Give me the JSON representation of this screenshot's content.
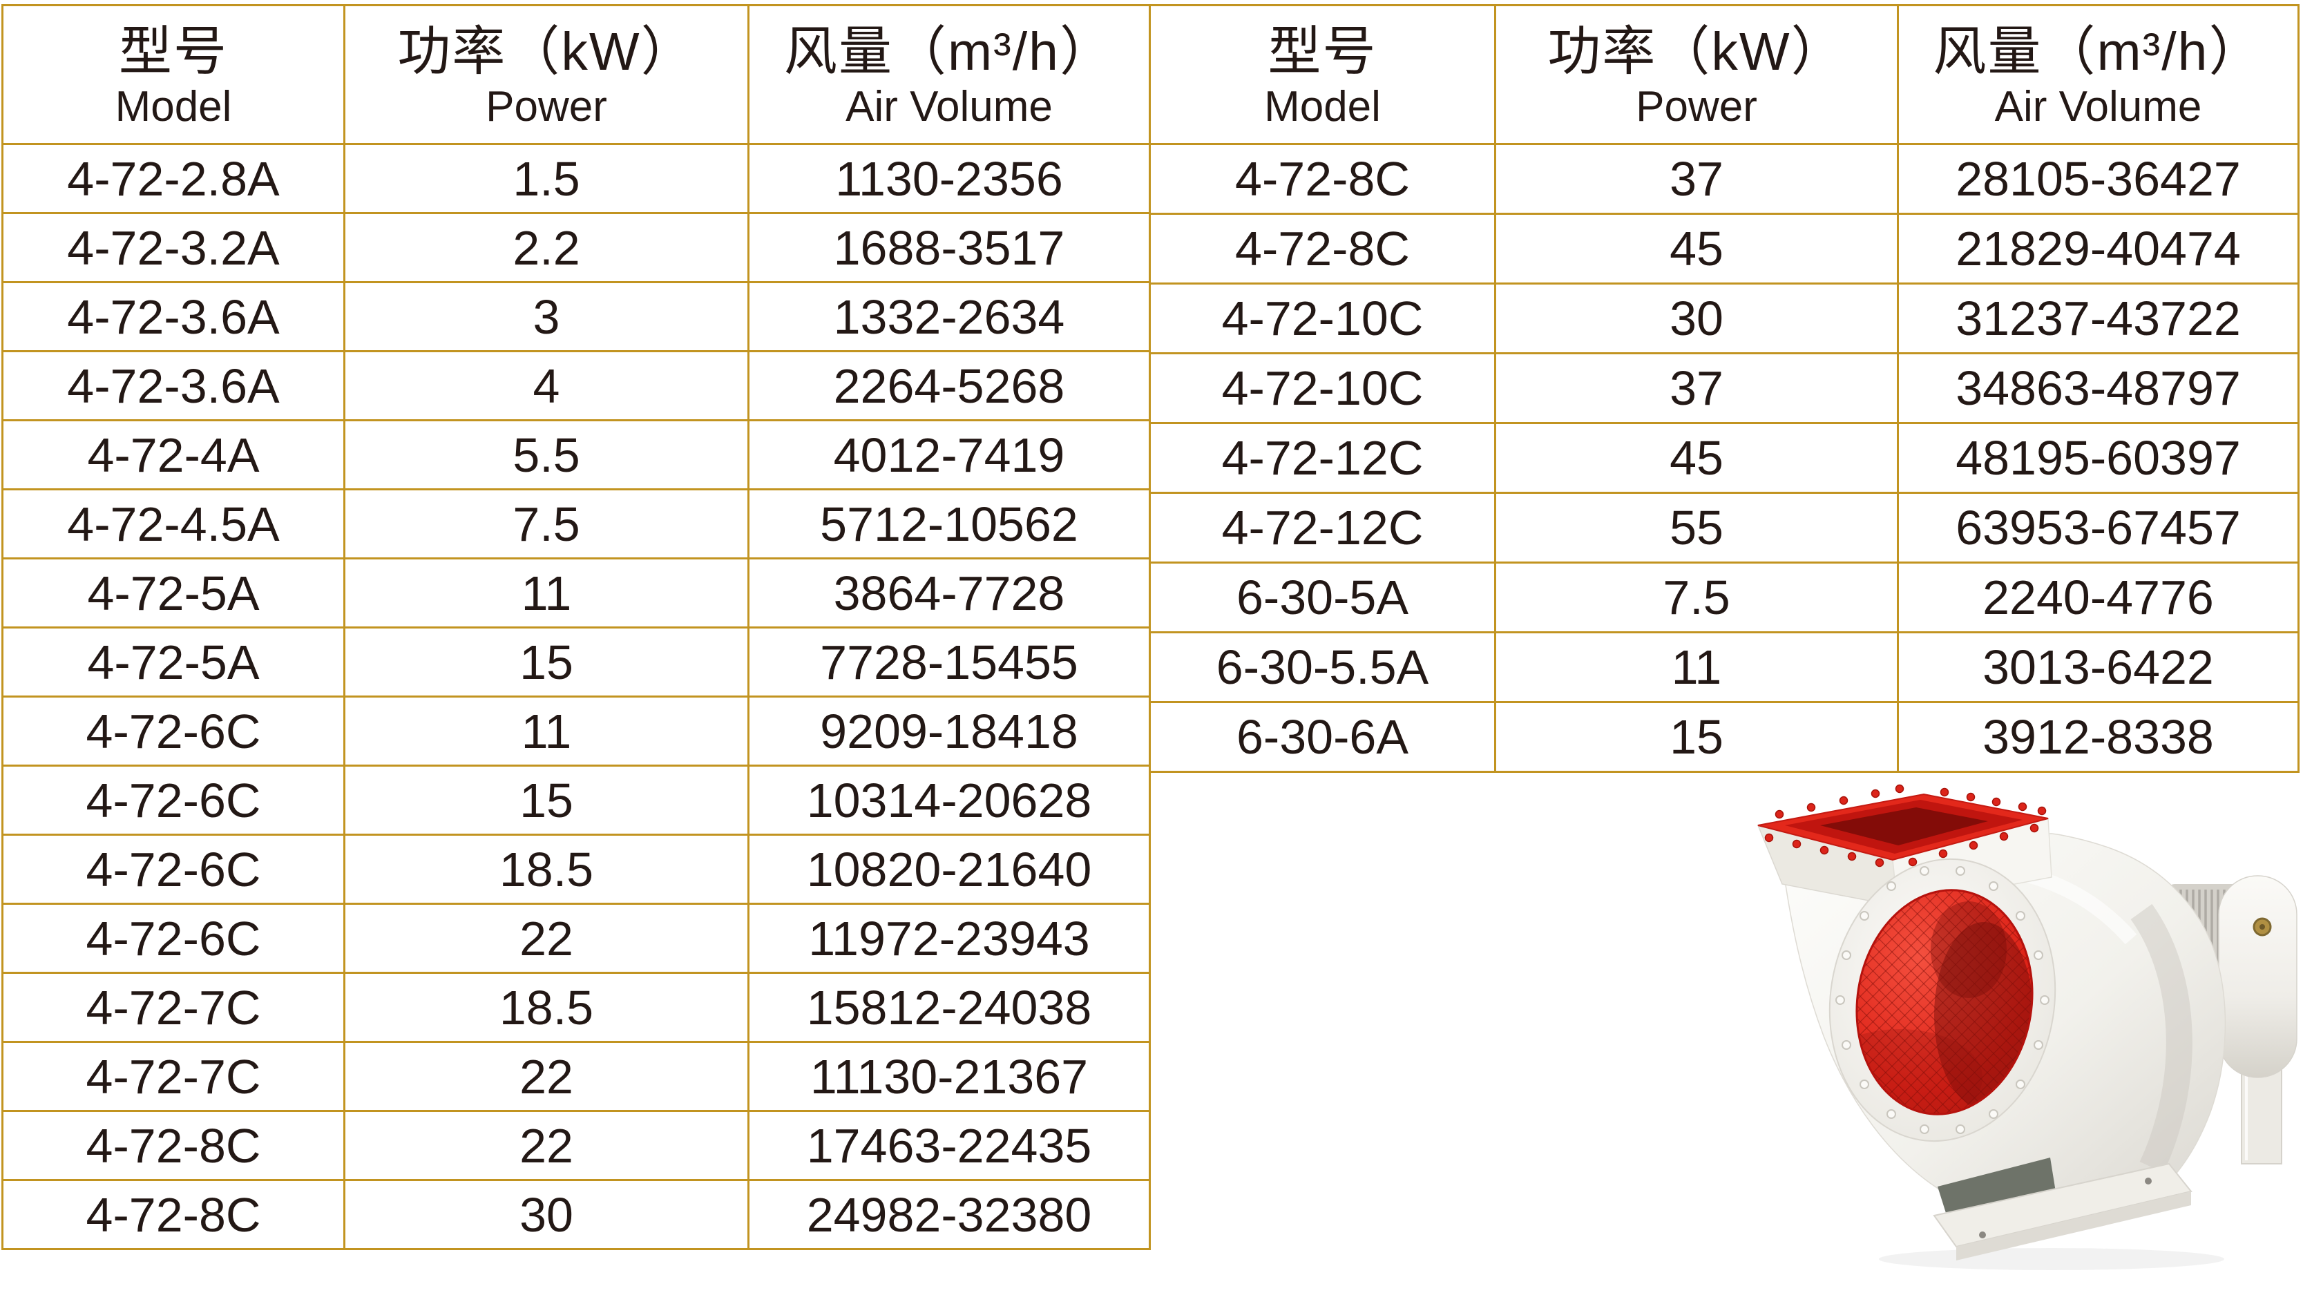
{
  "page": {
    "background": "#ffffff",
    "border_color": "#c29420",
    "text_color": "#231815"
  },
  "columns": [
    {
      "zh": "型号",
      "en": "Model"
    },
    {
      "zh": "功率（kW）",
      "en": "Power"
    },
    {
      "zh": "风量（m³/h）",
      "en": "Air Volume"
    }
  ],
  "tables": {
    "left": {
      "rows": [
        {
          "model": "4-72-2.8A",
          "power": "1.5",
          "volume": "1130-2356"
        },
        {
          "model": "4-72-3.2A",
          "power": "2.2",
          "volume": "1688-3517"
        },
        {
          "model": "4-72-3.6A",
          "power": "3",
          "volume": "1332-2634"
        },
        {
          "model": "4-72-3.6A",
          "power": "4",
          "volume": "2264-5268"
        },
        {
          "model": "4-72-4A",
          "power": "5.5",
          "volume": "4012-7419"
        },
        {
          "model": "4-72-4.5A",
          "power": "7.5",
          "volume": "5712-10562"
        },
        {
          "model": "4-72-5A",
          "power": "11",
          "volume": "3864-7728"
        },
        {
          "model": "4-72-5A",
          "power": "15",
          "volume": "7728-15455"
        },
        {
          "model": "4-72-6C",
          "power": "11",
          "volume": "9209-18418"
        },
        {
          "model": "4-72-6C",
          "power": "15",
          "volume": "10314-20628"
        },
        {
          "model": "4-72-6C",
          "power": "18.5",
          "volume": "10820-21640"
        },
        {
          "model": "4-72-6C",
          "power": "22",
          "volume": "11972-23943"
        },
        {
          "model": "4-72-7C",
          "power": "18.5",
          "volume": "15812-24038"
        },
        {
          "model": "4-72-7C",
          "power": "22",
          "volume": "11130-21367"
        },
        {
          "model": "4-72-8C",
          "power": "22",
          "volume": "17463-22435"
        },
        {
          "model": "4-72-8C",
          "power": "30",
          "volume": "24982-32380"
        }
      ]
    },
    "right": {
      "rows": [
        {
          "model": "4-72-8C",
          "power": "37",
          "volume": "28105-36427"
        },
        {
          "model": "4-72-8C",
          "power": "45",
          "volume": "21829-40474"
        },
        {
          "model": "4-72-10C",
          "power": "30",
          "volume": "31237-43722"
        },
        {
          "model": "4-72-10C",
          "power": "37",
          "volume": "34863-48797"
        },
        {
          "model": "4-72-12C",
          "power": "45",
          "volume": "48195-60397"
        },
        {
          "model": "4-72-12C",
          "power": "55",
          "volume": "63953-67457"
        },
        {
          "model": "6-30-5A",
          "power": "7.5",
          "volume": "2240-4776"
        },
        {
          "model": "6-30-5.5A",
          "power": "11",
          "volume": "3013-6422"
        },
        {
          "model": "6-30-6A",
          "power": "15",
          "volume": "3912-8338"
        }
      ]
    }
  },
  "product_image": {
    "name": "centrifugal-fan-photo",
    "colors": {
      "fan_red": "#dd2217",
      "fan_dark_red": "#830c08",
      "housing_white": "#f4f3ee",
      "brass": "#b08f42"
    }
  }
}
